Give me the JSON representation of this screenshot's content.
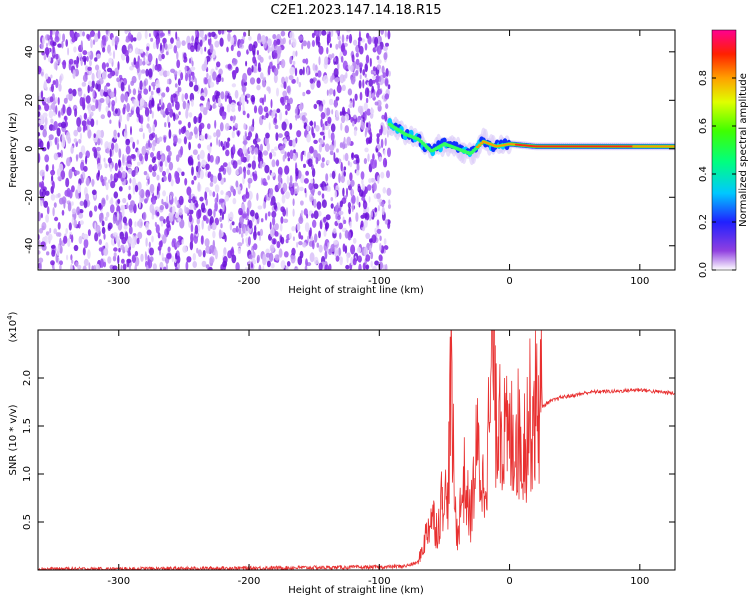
{
  "title": "C2E1.2023.147.14.18.R15",
  "chart_data": [
    {
      "type": "heatmap",
      "xlabel": "Height of straight line (km)",
      "ylabel": "Frequency (Hz)",
      "xlim": [
        -362,
        127
      ],
      "ylim": [
        -50,
        49
      ],
      "x_ticks": [
        -300,
        -200,
        -100,
        0,
        100
      ],
      "y_ticks": [
        -40,
        -20,
        0,
        20,
        40
      ],
      "x_tick_labels": [
        "-300",
        "-200",
        "-100",
        "0",
        "100"
      ],
      "y_tick_labels": [
        "-40",
        "-20",
        "0",
        "20",
        "40"
      ],
      "noise_region_x": [
        -362,
        -92
      ],
      "spectral_line": {
        "x": [
          -92,
          -80,
          -70,
          -60,
          -50,
          -40,
          -30,
          -20,
          -10,
          0,
          20,
          60,
          100,
          127
        ],
        "freq": [
          10,
          6,
          4,
          -1,
          2,
          0,
          -2,
          3,
          1,
          2,
          1,
          1,
          1,
          1
        ]
      },
      "colorbar": {
        "label": "Normalized spectral amplitude",
        "ticks": [
          0.0,
          0.2,
          0.4,
          0.6,
          0.8
        ],
        "tick_labels": [
          "0.0",
          "0.2",
          "0.4",
          "0.6",
          "0.8"
        ],
        "range": [
          0,
          1
        ],
        "colormap": [
          "#ffffff",
          "#8020e0",
          "#2020ff",
          "#00c0ff",
          "#00ff80",
          "#40ff00",
          "#ffff00",
          "#ff8000",
          "#ff0000",
          "#ff0080"
        ]
      },
      "grid": false
    },
    {
      "type": "line",
      "xlabel": "Height of straight line (km)",
      "ylabel": "SNR (10 * v/v)",
      "multiplier_label": "(x10",
      "multiplier_exp": "4",
      "xlim": [
        -362,
        127
      ],
      "ylim": [
        0,
        2.5
      ],
      "x_ticks": [
        -300,
        -200,
        -100,
        0,
        100
      ],
      "y_ticks": [
        0.5,
        1.0,
        1.5,
        2.0
      ],
      "x_tick_labels": [
        "-300",
        "-200",
        "-100",
        "0",
        "100"
      ],
      "y_tick_labels": [
        "0.5",
        "1.0",
        "1.5",
        "2.0"
      ],
      "series": [
        {
          "color": "#e83030",
          "x": [
            -362,
            -300,
            -200,
            -100,
            -80,
            -70,
            -65,
            -60,
            -55,
            -50,
            -48,
            -45,
            -42,
            -40,
            -35,
            -30,
            -25,
            -20,
            -15,
            -12,
            -10,
            -8,
            -5,
            0,
            5,
            10,
            15,
            20,
            25,
            30,
            40,
            50,
            60,
            70,
            80,
            90,
            100,
            110,
            120,
            127
          ],
          "y": [
            0.01,
            0.01,
            0.02,
            0.03,
            0.04,
            0.08,
            0.3,
            0.55,
            0.4,
            0.9,
            0.5,
            1.85,
            0.6,
            0.35,
            0.9,
            0.5,
            1.2,
            0.8,
            1.5,
            2.45,
            1.2,
            1.9,
            1.3,
            1.25,
            1.4,
            1.2,
            1.5,
            1.6,
            1.7,
            1.75,
            1.8,
            1.82,
            1.85,
            1.86,
            1.86,
            1.87,
            1.88,
            1.86,
            1.85,
            1.84
          ]
        }
      ],
      "grid": false
    }
  ]
}
